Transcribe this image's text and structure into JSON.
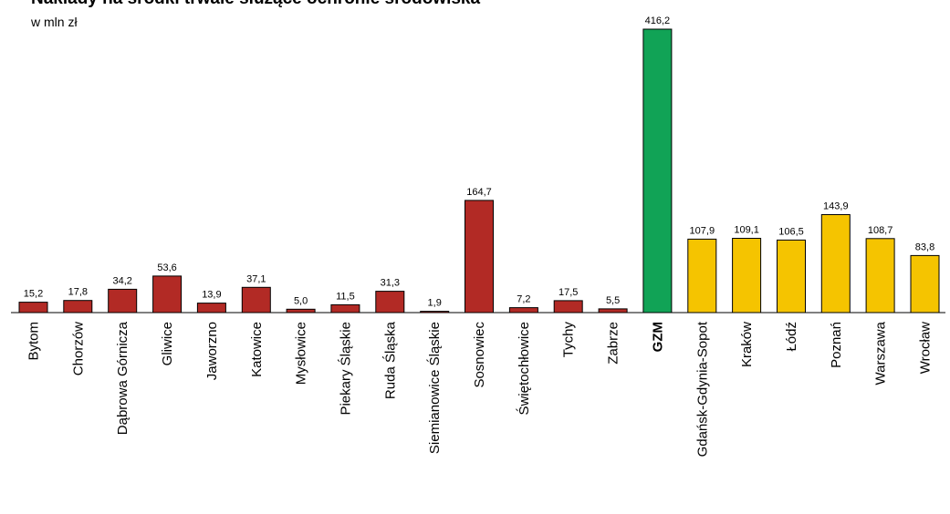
{
  "chart_data": {
    "type": "bar",
    "title": "Nakłady na środki trwałe służące ochronie środowiska",
    "subtitle": "w mln zł",
    "categories": [
      "Bytom",
      "Chorzów",
      "Dąbrowa Górnicza",
      "Gliwice",
      "Jaworzno",
      "Katowice",
      "Mysłowice",
      "Piekary Śląskie",
      "Ruda Śląska",
      "Siemianowice Śląskie",
      "Sosnowiec",
      "Świętochłowice",
      "Tychy",
      "Zabrze",
      "GZM",
      "Gdańsk-Gdynia-Sopot",
      "Kraków",
      "Łódź",
      "Poznań",
      "Warszawa",
      "Wrocław"
    ],
    "values": [
      15.2,
      17.8,
      34.2,
      53.6,
      13.9,
      37.1,
      5.0,
      11.5,
      31.3,
      1.9,
      164.7,
      7.2,
      17.5,
      5.5,
      416.2,
      107.9,
      109.1,
      106.5,
      143.9,
      108.7,
      83.8
    ],
    "labels": [
      "15,2",
      "17,8",
      "34,2",
      "53,6",
      "13,9",
      "37,1",
      "5,0",
      "11,5",
      "31,3",
      "1,9",
      "164,7",
      "7,2",
      "17,5",
      "5,5",
      "416,2",
      "107,9",
      "109,1",
      "106,5",
      "143,9",
      "108,7",
      "83,8"
    ],
    "groups": [
      "red",
      "red",
      "red",
      "red",
      "red",
      "red",
      "red",
      "red",
      "red",
      "red",
      "red",
      "red",
      "red",
      "red",
      "green",
      "yellow",
      "yellow",
      "yellow",
      "yellow",
      "yellow",
      "yellow"
    ],
    "bold_categories": [
      "GZM"
    ],
    "colors": {
      "red": "#b22a25",
      "green": "#11a356",
      "yellow": "#f5c400",
      "stroke": "#000000"
    },
    "ylim": [
      0,
      416.2
    ],
    "grid": false
  }
}
